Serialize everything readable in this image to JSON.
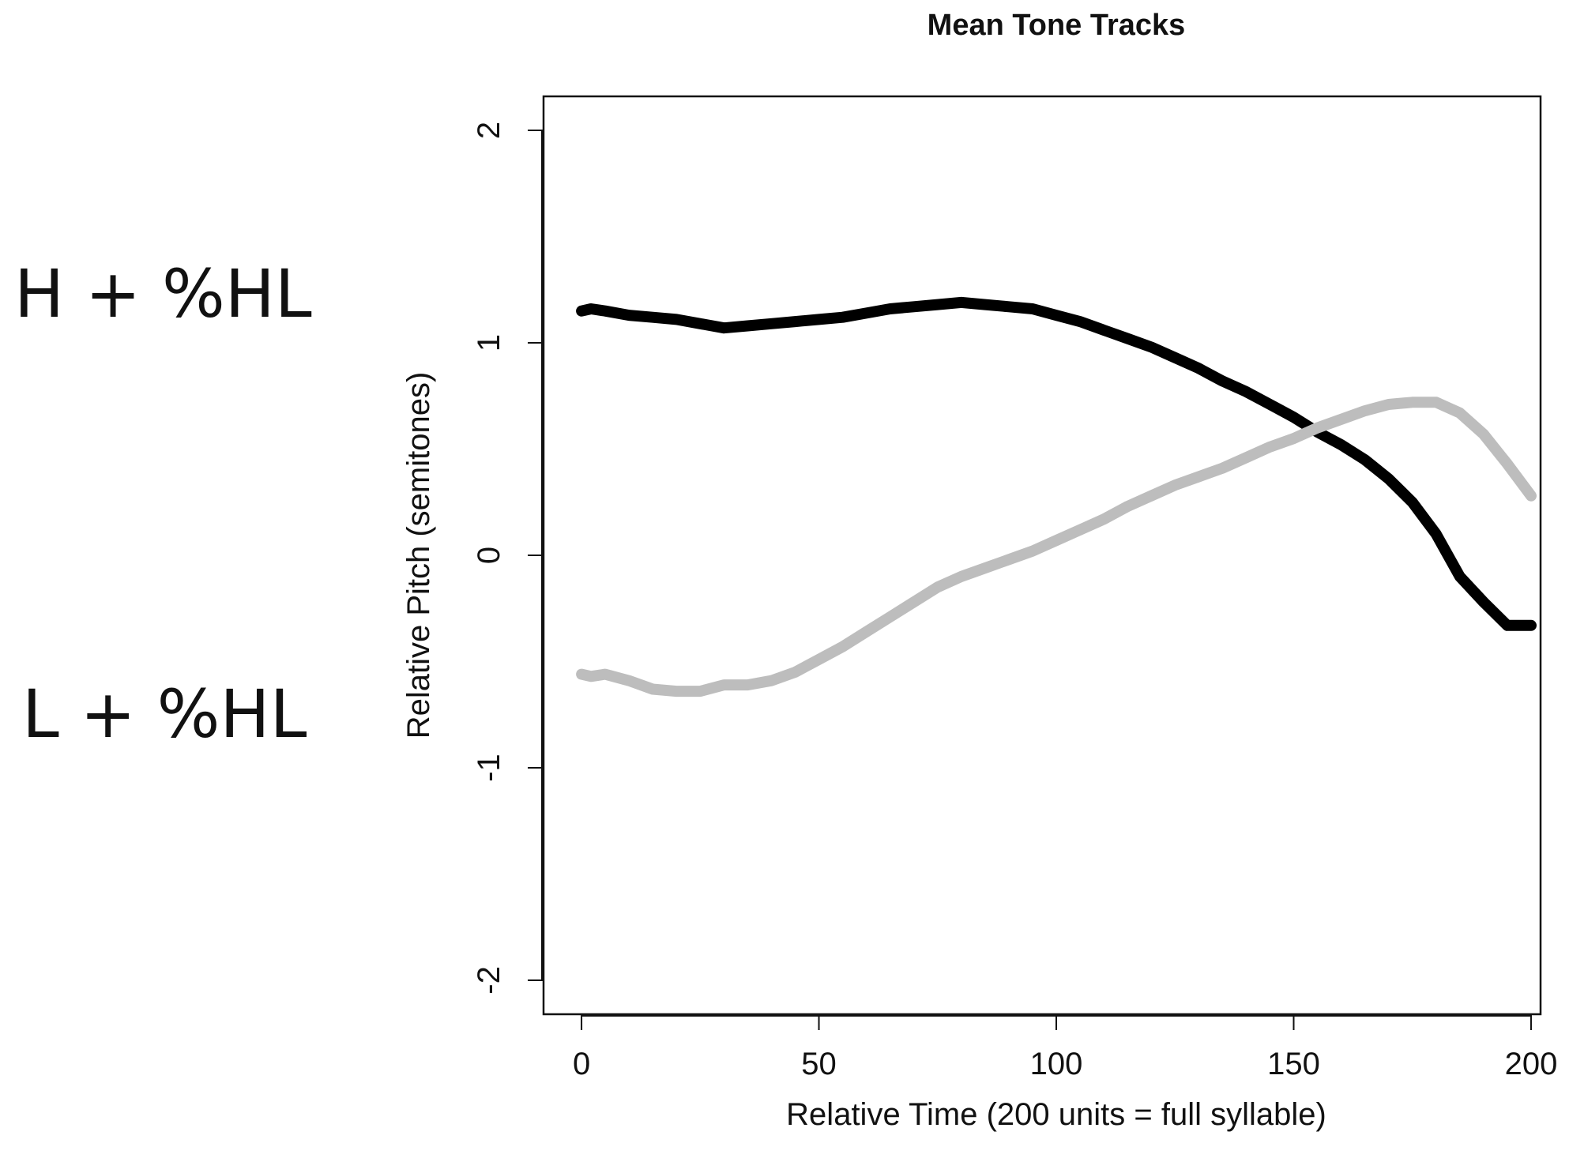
{
  "side_labels": {
    "high": "H + %HL",
    "low": "L + %HL"
  },
  "chart_data": {
    "type": "line",
    "title": "Mean Tone Tracks",
    "xlabel": "Relative Time (200 units = full syllable)",
    "ylabel": "Relative Pitch (semitones)",
    "xlim": [
      -8,
      202
    ],
    "ylim": [
      -2.16,
      2.16
    ],
    "xticks": [
      0,
      50,
      100,
      150,
      200
    ],
    "yticks": [
      -2,
      -1,
      0,
      1,
      2
    ],
    "grid": false,
    "legend": "none",
    "series": [
      {
        "color": "#000000",
        "x": [
          0,
          2,
          5,
          10,
          15,
          20,
          25,
          30,
          35,
          40,
          45,
          50,
          55,
          60,
          65,
          70,
          75,
          80,
          85,
          90,
          95,
          100,
          105,
          110,
          115,
          120,
          125,
          130,
          135,
          140,
          145,
          150,
          155,
          160,
          165,
          170,
          175,
          180,
          185,
          190,
          195,
          200
        ],
        "y": [
          1.15,
          1.16,
          1.15,
          1.13,
          1.12,
          1.11,
          1.09,
          1.07,
          1.08,
          1.09,
          1.1,
          1.11,
          1.12,
          1.14,
          1.16,
          1.17,
          1.18,
          1.19,
          1.18,
          1.17,
          1.16,
          1.13,
          1.1,
          1.06,
          1.02,
          0.98,
          0.93,
          0.88,
          0.82,
          0.77,
          0.71,
          0.65,
          0.58,
          0.52,
          0.45,
          0.36,
          0.25,
          0.1,
          -0.1,
          -0.22,
          -0.33,
          -0.33
        ]
      },
      {
        "color": "#bdbdbd",
        "x": [
          0,
          2,
          5,
          10,
          15,
          20,
          25,
          30,
          35,
          40,
          45,
          50,
          55,
          60,
          65,
          70,
          75,
          80,
          85,
          90,
          95,
          100,
          105,
          110,
          115,
          120,
          125,
          130,
          135,
          140,
          145,
          150,
          155,
          160,
          165,
          170,
          175,
          180,
          185,
          190,
          195,
          200
        ],
        "y": [
          -0.56,
          -0.57,
          -0.56,
          -0.59,
          -0.63,
          -0.64,
          -0.64,
          -0.61,
          -0.61,
          -0.59,
          -0.55,
          -0.49,
          -0.43,
          -0.36,
          -0.29,
          -0.22,
          -0.15,
          -0.1,
          -0.06,
          -0.02,
          0.02,
          0.07,
          0.12,
          0.17,
          0.23,
          0.28,
          0.33,
          0.37,
          0.41,
          0.46,
          0.51,
          0.55,
          0.6,
          0.64,
          0.68,
          0.71,
          0.72,
          0.72,
          0.67,
          0.57,
          0.43,
          0.28
        ]
      }
    ]
  }
}
